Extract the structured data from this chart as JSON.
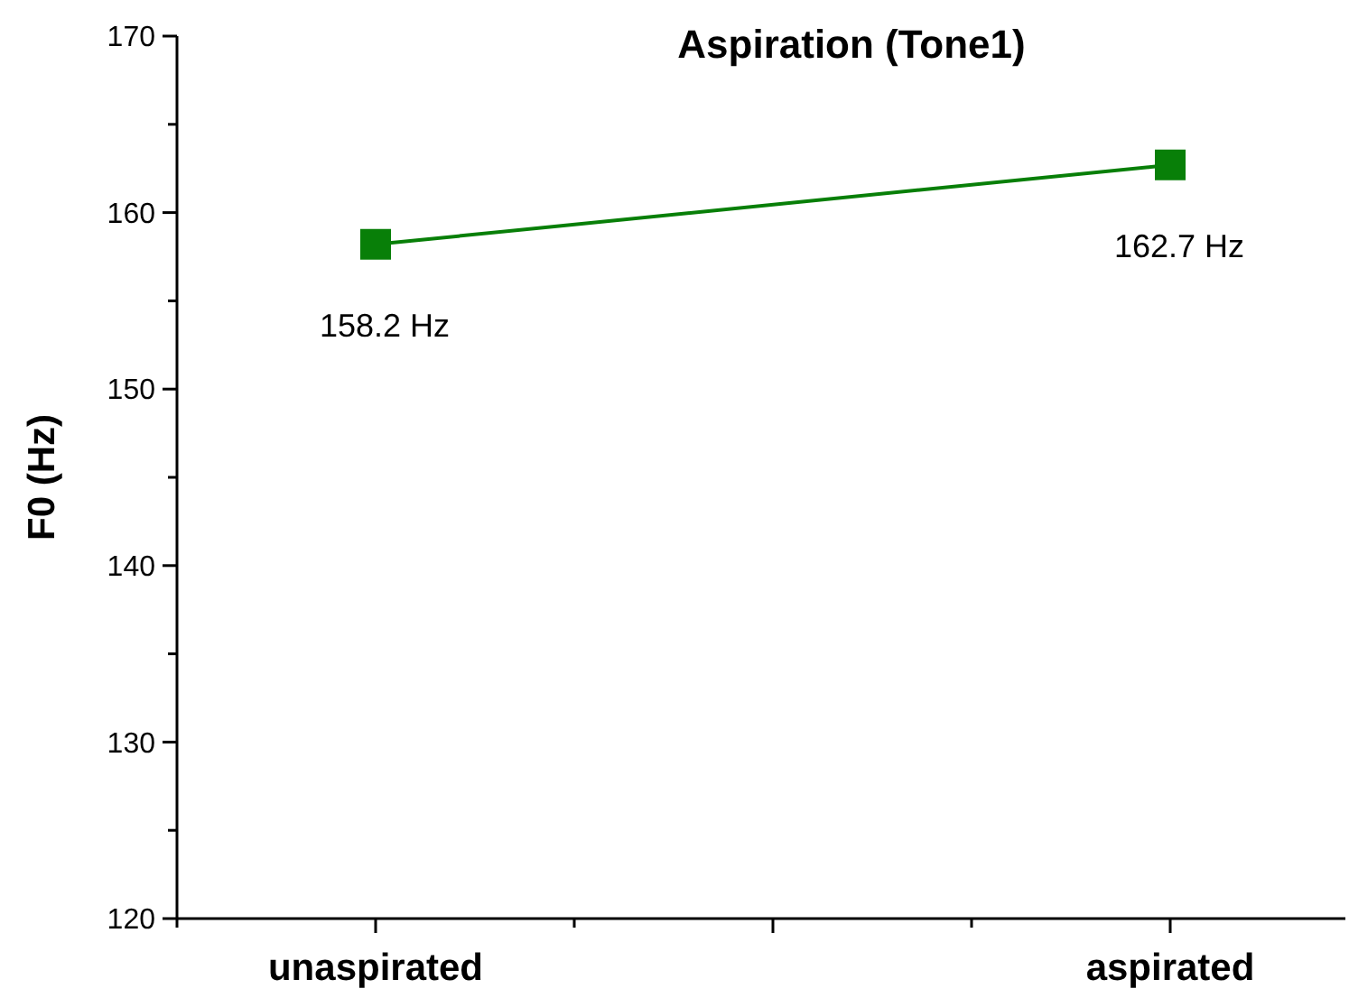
{
  "chart_data": {
    "type": "line",
    "title": "Aspiration (Tone1)",
    "ylabel": "F0 (Hz)",
    "categories": [
      "unaspirated",
      null,
      "aspirated"
    ],
    "series": [
      {
        "color": "#087f08",
        "values": [
          158.2,
          null,
          162.7
        ],
        "value_labels": [
          "158.2 Hz",
          null,
          "162.7 Hz"
        ]
      }
    ],
    "ylim": [
      120,
      170
    ],
    "yticks": [
      120,
      130,
      140,
      150,
      160,
      170
    ],
    "marker": "square",
    "line_style": "solid"
  }
}
